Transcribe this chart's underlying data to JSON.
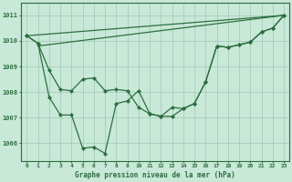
{
  "background_color": "#c8e8d8",
  "grid_color": "#a0c8b8",
  "line_color": "#2d6e3e",
  "title": "Graphe pression niveau de la mer (hPa)",
  "xlim": [
    -0.5,
    23.5
  ],
  "ylim": [
    1005.3,
    1011.5
  ],
  "yticks": [
    1006,
    1007,
    1008,
    1009,
    1010,
    1011
  ],
  "xticks": [
    0,
    1,
    2,
    3,
    4,
    5,
    6,
    7,
    8,
    9,
    10,
    11,
    12,
    13,
    14,
    15,
    16,
    17,
    18,
    19,
    20,
    21,
    22,
    23
  ],
  "series_straight1": {
    "x": [
      0,
      23
    ],
    "y": [
      1010.2,
      1011.0
    ]
  },
  "series_straight2": {
    "x": [
      1,
      23
    ],
    "y": [
      1009.8,
      1011.0
    ]
  },
  "series_jagged": {
    "x": [
      0,
      1,
      2,
      3,
      4,
      5,
      6,
      7,
      8,
      9,
      10,
      11,
      12,
      13,
      14,
      15,
      16,
      17,
      18,
      19,
      20,
      21,
      22,
      23
    ],
    "y": [
      1010.2,
      1009.9,
      1007.8,
      1007.1,
      1007.1,
      1005.8,
      1005.85,
      1005.6,
      1007.55,
      1007.65,
      1008.05,
      1007.15,
      1007.05,
      1007.05,
      1007.35,
      1007.55,
      1008.4,
      1009.8,
      1009.75,
      1009.85,
      1009.95,
      1010.35,
      1010.5,
      1011.0
    ]
  },
  "series_smooth": {
    "x": [
      0,
      1,
      2,
      3,
      4,
      5,
      6,
      7,
      8,
      9,
      10,
      11,
      12,
      13,
      14,
      15,
      16,
      17,
      18,
      19,
      20,
      21,
      22,
      23
    ],
    "y": [
      1010.2,
      1009.9,
      1008.85,
      1008.1,
      1008.05,
      1008.5,
      1008.55,
      1008.05,
      1008.1,
      1008.05,
      1007.4,
      1007.15,
      1007.05,
      1007.4,
      1007.35,
      1007.55,
      1008.4,
      1009.8,
      1009.75,
      1009.85,
      1009.95,
      1010.35,
      1010.5,
      1011.0
    ]
  }
}
